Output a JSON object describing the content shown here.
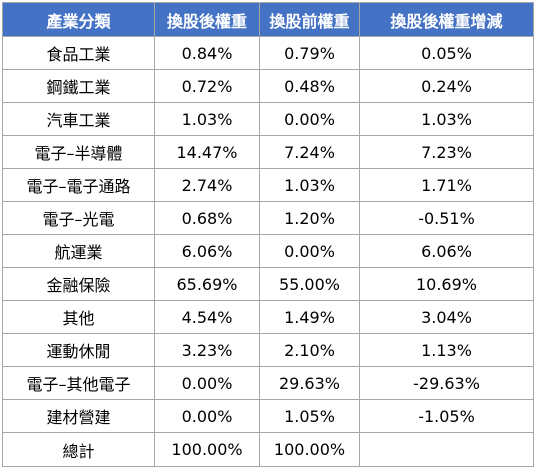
{
  "table": {
    "headers": [
      "產業分類",
      "換股後權重",
      "換股前權重",
      "換股後權重增減"
    ],
    "rows": [
      [
        "食品工業",
        "0.84%",
        "0.79%",
        "0.05%"
      ],
      [
        "鋼鐵工業",
        "0.72%",
        "0.48%",
        "0.24%"
      ],
      [
        "汽車工業",
        "1.03%",
        "0.00%",
        "1.03%"
      ],
      [
        "電子–半導體",
        "14.47%",
        "7.24%",
        "7.23%"
      ],
      [
        "電子–電子通路",
        "2.74%",
        "1.03%",
        "1.71%"
      ],
      [
        "電子–光電",
        "0.68%",
        "1.20%",
        "-0.51%"
      ],
      [
        "航運業",
        "6.06%",
        "0.00%",
        "6.06%"
      ],
      [
        "金融保險",
        "65.69%",
        "55.00%",
        "10.69%"
      ],
      [
        "其他",
        "4.54%",
        "1.49%",
        "3.04%"
      ],
      [
        "運動休閒",
        "3.23%",
        "2.10%",
        "1.13%"
      ],
      [
        "電子–其他電子",
        "0.00%",
        "29.63%",
        "-29.63%"
      ],
      [
        "建材營建",
        "0.00%",
        "1.05%",
        "-1.05%"
      ]
    ],
    "total": [
      "總計",
      "100.00%",
      "100.00%",
      ""
    ]
  },
  "colors": {
    "header_bg": "#4472c4",
    "header_text": "#ffffff",
    "grid": "#a6a6a6"
  }
}
